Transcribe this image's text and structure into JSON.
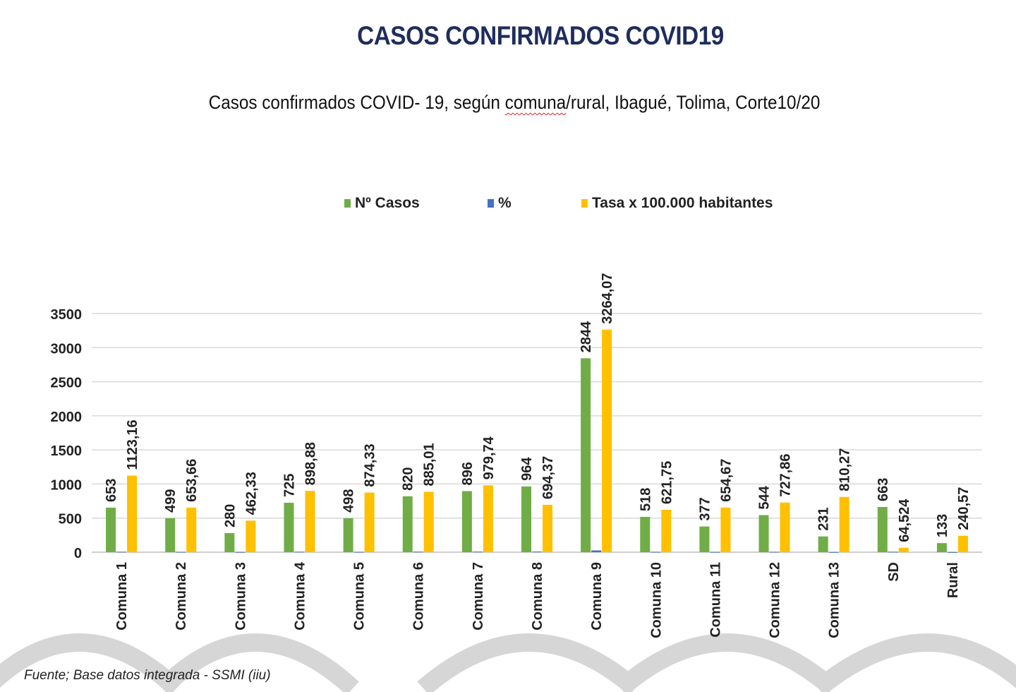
{
  "title": "CASOS CONFIRMADOS COVID19",
  "subtitle_prefix": "Casos confirmados COVID- 19, según ",
  "subtitle_squiggle": "comuna",
  "subtitle_suffix": "/rural, Ibagué, Tolima, Corte10/20",
  "source": "Fuente; Base datos integrada - SSMI (iiu)",
  "colors": {
    "casos": "#70ad47",
    "porcentaje": "#4472c4",
    "tasa": "#ffc000",
    "title": "#1f2d5c",
    "grid": "#d9d9d9",
    "watermark": "#d6d6d6"
  },
  "chart_data": {
    "type": "bar",
    "title": "Casos confirmados COVID- 19, según comuna/rural, Ibagué, Tolima, Corte10/20",
    "xlabel": "",
    "ylabel": "",
    "ylim": [
      0,
      3500
    ],
    "yticks": [
      0,
      500,
      1000,
      1500,
      2000,
      2500,
      3000,
      3500
    ],
    "grid": true,
    "legend_position": "top",
    "categories": [
      "Comuna 1",
      "Comuna 2",
      "Comuna 3",
      "Comuna 4",
      "Comuna 5",
      "Comuna 6",
      "Comuna 7",
      "Comuna 8",
      "Comuna 9",
      "Comuna 10",
      "Comuna 11",
      "Comuna 12",
      "Comuna 13",
      "SD",
      "Rural"
    ],
    "series": [
      {
        "name": "Nº Casos",
        "values": [
          653,
          499,
          280,
          725,
          498,
          820,
          896,
          964,
          2844,
          518,
          377,
          544,
          231,
          663,
          133
        ],
        "labels": [
          "653",
          "499",
          "280",
          "725",
          "498",
          "820",
          "896",
          "964",
          "2844",
          "518",
          "377",
          "544",
          "231",
          "663",
          "133"
        ]
      },
      {
        "name": "%",
        "values": [
          6,
          4.6,
          2.6,
          6.7,
          4.6,
          7.5,
          8.2,
          8.9,
          26.2,
          4.8,
          3.5,
          5,
          2.1,
          6.1,
          1.2
        ],
        "labels": []
      },
      {
        "name": "Tasa x 100.000 habitantes",
        "values": [
          1123.16,
          653.66,
          462.33,
          898.88,
          874.33,
          885.01,
          979.74,
          694.37,
          3264.07,
          621.75,
          654.67,
          727.86,
          810.27,
          64.524,
          240.57
        ],
        "labels": [
          "1123,16",
          "653,66",
          "462,33",
          "898,88",
          "874,33",
          "885,01",
          "979,74",
          "694,37",
          "3264,07",
          "621,75",
          "654,67",
          "727,86",
          "810,27",
          "64,524",
          "240,57"
        ]
      }
    ]
  }
}
